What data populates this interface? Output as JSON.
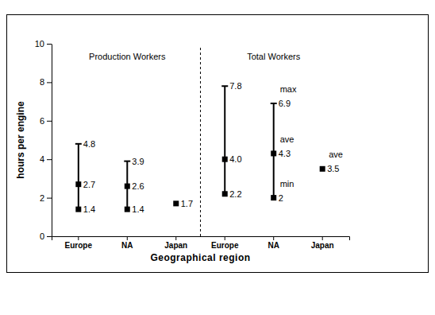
{
  "chart_data": {
    "type": "range",
    "x_label": "Geographical region",
    "y_label": "hours per engine",
    "categories": [
      "Europe",
      "NA",
      "Japan",
      "Europe",
      "NA",
      "Japan"
    ],
    "group_labels": [
      "Production Workers",
      "Total Workers"
    ],
    "series": [
      {
        "name": "max",
        "marker": "dash",
        "values": [
          4.8,
          3.9,
          null,
          7.8,
          6.9,
          null
        ]
      },
      {
        "name": "ave",
        "marker": "square",
        "values": [
          2.7,
          2.6,
          1.7,
          4.0,
          4.3,
          3.5
        ],
        "value_labels": [
          "2.7",
          "2.6",
          "1.7",
          "4.0",
          "4.3",
          "3.5"
        ]
      },
      {
        "name": "min",
        "marker": "square",
        "values": [
          1.4,
          1.4,
          null,
          2.2,
          2.0,
          null
        ]
      }
    ],
    "annotations": [
      {
        "series": 0,
        "category": 4
      },
      {
        "series": 1,
        "category": 4
      },
      {
        "series": 1,
        "category": 5
      },
      {
        "series": 2,
        "category": 4
      }
    ],
    "color": "#000000",
    "ylim": [
      0,
      10
    ],
    "yticks": [
      0,
      2,
      4,
      6,
      8,
      10
    ],
    "data_labels": true
  }
}
